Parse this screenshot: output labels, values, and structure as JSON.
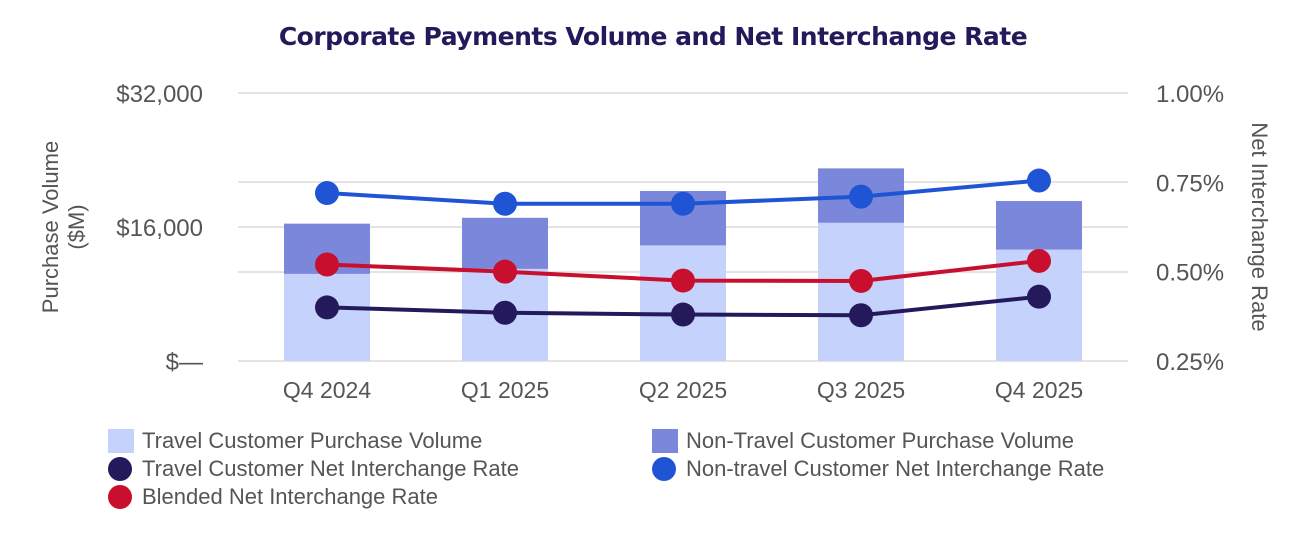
{
  "chart_data": {
    "type": "bar",
    "title": "Corporate Payments Volume and Net Interchange Rate",
    "categories": [
      "Q4 2024",
      "Q1 2025",
      "Q2 2025",
      "Q3 2025",
      "Q4 2025"
    ],
    "stacked": true,
    "ylabel": "Purchase Volume ($M)",
    "y2label": "Net Interchange Rate",
    "ylim": [
      0,
      32000
    ],
    "y2lim": [
      0.25,
      1.0
    ],
    "y_ticks": [
      "$32,000",
      "$16,000",
      "$—"
    ],
    "y_tick_values": [
      32000,
      16000,
      0
    ],
    "y2_ticks": [
      "1.00%",
      "0.75%",
      "0.50%",
      "0.25%"
    ],
    "y2_tick_values": [
      1.0,
      0.75,
      0.5,
      0.25
    ],
    "grid": true,
    "legend_position": "bottom",
    "bar_series": [
      {
        "name": "Travel Customer Purchase Volume",
        "color": "#c5d3fc",
        "values": [
          10400,
          11000,
          13800,
          16500,
          13300
        ]
      },
      {
        "name": "Non-Travel Customer Purchase Volume",
        "color": "#7b87da",
        "values": [
          6000,
          6100,
          6500,
          6500,
          5800
        ]
      }
    ],
    "line_series": [
      {
        "name": "Travel Customer Net Interchange Rate",
        "color": "#24195a",
        "values": [
          0.4,
          0.385,
          0.38,
          0.378,
          0.43
        ]
      },
      {
        "name": "Non-travel Customer Net Interchange Rate",
        "color": "#1f55d4",
        "values": [
          0.72,
          0.69,
          0.69,
          0.71,
          0.755
        ]
      },
      {
        "name": "Blended Net Interchange Rate",
        "color": "#c8102e",
        "values": [
          0.52,
          0.5,
          0.475,
          0.474,
          0.53
        ]
      }
    ]
  }
}
